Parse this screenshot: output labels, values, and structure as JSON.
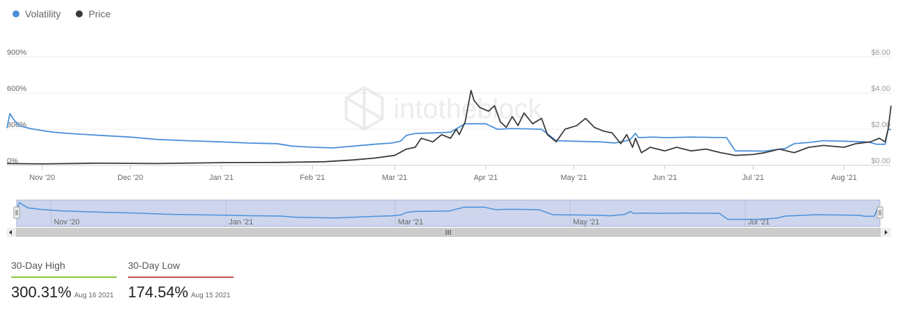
{
  "legend": [
    {
      "name": "Volatility",
      "color": "#4a90d9"
    },
    {
      "name": "Price",
      "color": "#3a3a3a"
    }
  ],
  "watermark": "intotheblock",
  "chart_data": {
    "type": "line",
    "x_labels": [
      "Nov '20",
      "Dec '20",
      "Jan '21",
      "Feb '21",
      "Mar '21",
      "Apr '21",
      "May '21",
      "Jun '21",
      "Jul '21",
      "Aug '21"
    ],
    "navigator_labels": [
      "Nov '20",
      "Jan '21",
      "Mar '21",
      "May '21",
      "Jul '21"
    ],
    "y_left_ticks": [
      "0%",
      "300%",
      "600%",
      "900%"
    ],
    "y_right_ticks": [
      "$0.00",
      "$2.00",
      "$4.00",
      "$6.00"
    ],
    "y_left_range": [
      0,
      900
    ],
    "y_right_range": [
      0,
      6
    ],
    "x_range": [
      "2020-10-20",
      "2021-08-17"
    ],
    "series": [
      {
        "name": "Volatility",
        "axis": "left",
        "color": "#4a90d9",
        "points": [
          [
            "2020-10-20",
            310
          ],
          [
            "2020-10-21",
            430
          ],
          [
            "2020-10-22",
            390
          ],
          [
            "2020-10-24",
            330
          ],
          [
            "2020-10-28",
            305
          ],
          [
            "2020-11-02",
            285
          ],
          [
            "2020-11-05",
            275
          ],
          [
            "2020-11-10",
            265
          ],
          [
            "2020-11-20",
            250
          ],
          [
            "2020-12-01",
            235
          ],
          [
            "2020-12-10",
            215
          ],
          [
            "2020-12-20",
            205
          ],
          [
            "2021-01-01",
            195
          ],
          [
            "2021-01-10",
            185
          ],
          [
            "2021-01-20",
            180
          ],
          [
            "2021-01-25",
            160
          ],
          [
            "2021-02-01",
            150
          ],
          [
            "2021-02-08",
            145
          ],
          [
            "2021-02-15",
            160
          ],
          [
            "2021-02-22",
            175
          ],
          [
            "2021-02-28",
            185
          ],
          [
            "2021-03-03",
            200
          ],
          [
            "2021-03-05",
            250
          ],
          [
            "2021-03-08",
            265
          ],
          [
            "2021-03-15",
            270
          ],
          [
            "2021-03-20",
            275
          ],
          [
            "2021-03-25",
            345
          ],
          [
            "2021-04-01",
            345
          ],
          [
            "2021-04-05",
            300
          ],
          [
            "2021-04-10",
            305
          ],
          [
            "2021-04-20",
            300
          ],
          [
            "2021-04-25",
            205
          ],
          [
            "2021-05-01",
            200
          ],
          [
            "2021-05-10",
            195
          ],
          [
            "2021-05-15",
            185
          ],
          [
            "2021-05-20",
            210
          ],
          [
            "2021-05-22",
            265
          ],
          [
            "2021-05-23",
            230
          ],
          [
            "2021-05-28",
            235
          ],
          [
            "2021-06-01",
            230
          ],
          [
            "2021-06-10",
            235
          ],
          [
            "2021-06-22",
            230
          ],
          [
            "2021-06-25",
            120
          ],
          [
            "2021-07-05",
            118
          ],
          [
            "2021-07-12",
            140
          ],
          [
            "2021-07-15",
            180
          ],
          [
            "2021-07-20",
            190
          ],
          [
            "2021-07-25",
            205
          ],
          [
            "2021-08-01",
            200
          ],
          [
            "2021-08-08",
            195
          ],
          [
            "2021-08-10",
            190
          ],
          [
            "2021-08-12",
            175
          ],
          [
            "2021-08-15",
            174.54
          ],
          [
            "2021-08-16",
            300.31
          ],
          [
            "2021-08-17",
            295
          ]
        ]
      },
      {
        "name": "Price",
        "axis": "right",
        "color": "#3a3a3a",
        "points": [
          [
            "2020-10-20",
            0.1
          ],
          [
            "2020-11-01",
            0.08
          ],
          [
            "2020-11-20",
            0.12
          ],
          [
            "2020-12-10",
            0.1
          ],
          [
            "2021-01-01",
            0.15
          ],
          [
            "2021-01-20",
            0.16
          ],
          [
            "2021-02-05",
            0.2
          ],
          [
            "2021-02-15",
            0.3
          ],
          [
            "2021-02-22",
            0.4
          ],
          [
            "2021-03-01",
            0.55
          ],
          [
            "2021-03-05",
            0.9
          ],
          [
            "2021-03-08",
            1.0
          ],
          [
            "2021-03-10",
            1.5
          ],
          [
            "2021-03-14",
            1.3
          ],
          [
            "2021-03-17",
            1.7
          ],
          [
            "2021-03-20",
            1.5
          ],
          [
            "2021-03-22",
            2.0
          ],
          [
            "2021-03-23",
            1.7
          ],
          [
            "2021-03-25",
            2.4
          ],
          [
            "2021-03-27",
            4.15
          ],
          [
            "2021-03-28",
            3.6
          ],
          [
            "2021-03-30",
            3.2
          ],
          [
            "2021-04-02",
            3.0
          ],
          [
            "2021-04-04",
            3.3
          ],
          [
            "2021-04-06",
            2.4
          ],
          [
            "2021-04-08",
            2.1
          ],
          [
            "2021-04-10",
            2.7
          ],
          [
            "2021-04-12",
            2.2
          ],
          [
            "2021-04-14",
            2.9
          ],
          [
            "2021-04-17",
            2.3
          ],
          [
            "2021-04-20",
            2.6
          ],
          [
            "2021-04-22",
            1.7
          ],
          [
            "2021-04-25",
            1.3
          ],
          [
            "2021-04-28",
            2.0
          ],
          [
            "2021-05-02",
            2.2
          ],
          [
            "2021-05-05",
            2.6
          ],
          [
            "2021-05-08",
            2.1
          ],
          [
            "2021-05-11",
            1.9
          ],
          [
            "2021-05-14",
            1.8
          ],
          [
            "2021-05-17",
            1.2
          ],
          [
            "2021-05-19",
            1.7
          ],
          [
            "2021-05-21",
            1.0
          ],
          [
            "2021-05-22",
            1.5
          ],
          [
            "2021-05-24",
            0.7
          ],
          [
            "2021-05-27",
            1.0
          ],
          [
            "2021-06-01",
            0.8
          ],
          [
            "2021-06-05",
            1.0
          ],
          [
            "2021-06-10",
            0.8
          ],
          [
            "2021-06-15",
            0.9
          ],
          [
            "2021-06-20",
            0.7
          ],
          [
            "2021-06-25",
            0.55
          ],
          [
            "2021-07-01",
            0.6
          ],
          [
            "2021-07-05",
            0.7
          ],
          [
            "2021-07-10",
            0.9
          ],
          [
            "2021-07-15",
            0.7
          ],
          [
            "2021-07-20",
            1.0
          ],
          [
            "2021-07-25",
            1.1
          ],
          [
            "2021-08-01",
            1.0
          ],
          [
            "2021-08-05",
            1.2
          ],
          [
            "2021-08-10",
            1.3
          ],
          [
            "2021-08-13",
            1.5
          ],
          [
            "2021-08-15",
            1.3
          ],
          [
            "2021-08-16",
            2.0
          ],
          [
            "2021-08-17",
            3.3
          ]
        ]
      }
    ]
  },
  "stats": [
    {
      "label": "30-Day High",
      "value": "300.31%",
      "date": "Aug 16 2021",
      "color": "#8ac33c"
    },
    {
      "label": "30-Day Low",
      "value": "174.54%",
      "date": "Aug 15 2021",
      "color": "#c0564a"
    }
  ]
}
